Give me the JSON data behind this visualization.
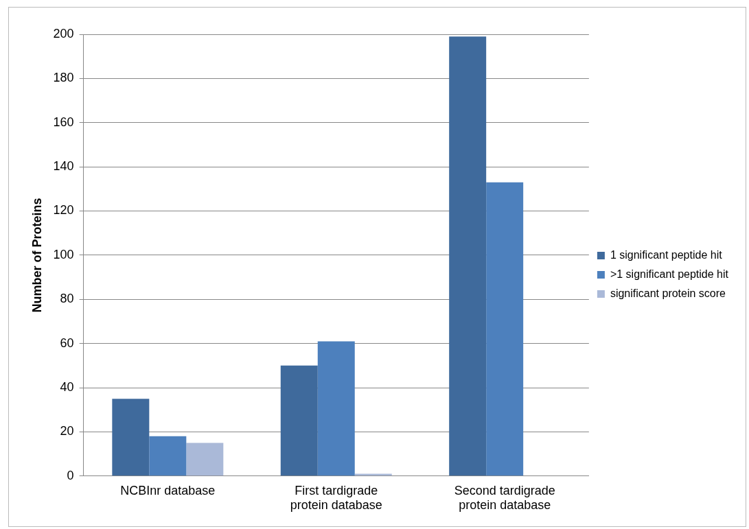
{
  "chart_data": {
    "type": "bar",
    "ylabel": "Number of Proteins",
    "categories": [
      "NCBInr database",
      "First tardigrade protein database",
      "Second tardigrade protein database"
    ],
    "series": [
      {
        "name": "1 significant peptide hit",
        "color": "#3f6a9c",
        "values": [
          35,
          50,
          199
        ]
      },
      {
        "name": ">1 significant peptide hit",
        "color": "#4d80bd",
        "values": [
          18,
          61,
          133
        ]
      },
      {
        "name": "significant protein score",
        "color": "#aab9d8",
        "values": [
          15,
          1,
          0
        ]
      }
    ],
    "ylim": [
      0,
      200
    ],
    "yticks": [
      0,
      20,
      40,
      60,
      80,
      100,
      120,
      140,
      160,
      180,
      200
    ],
    "grid": "y",
    "legend": "right"
  }
}
